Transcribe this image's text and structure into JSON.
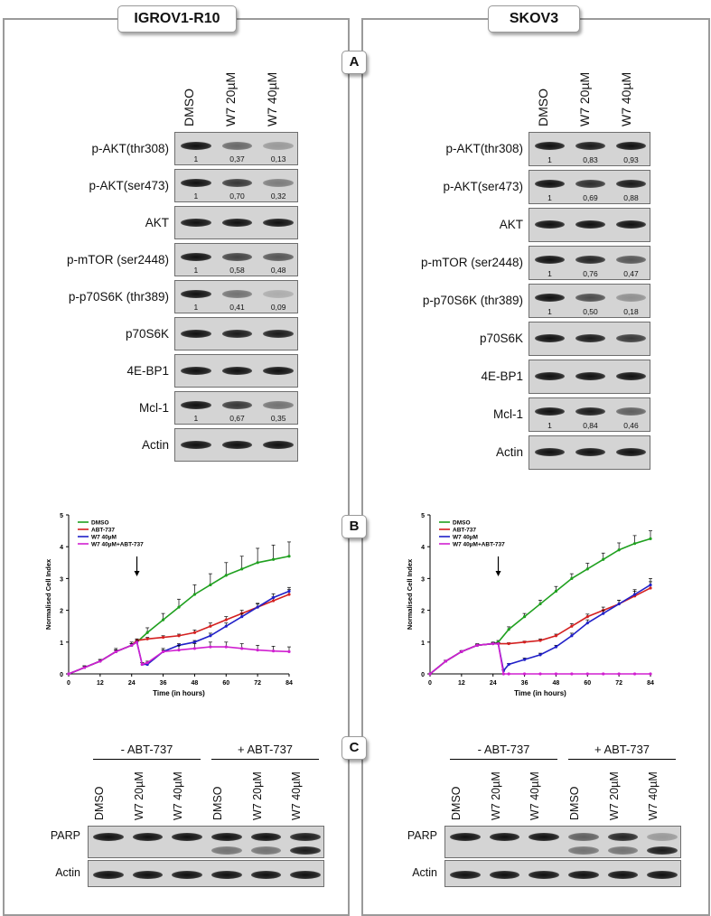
{
  "left": {
    "title": "IGROV1-R10",
    "lanes": [
      "DMSO",
      "W7 20µM",
      "W7 40µM"
    ],
    "blots": [
      {
        "label": "p-AKT(thr308)",
        "quant": [
          "1",
          "0,37",
          "0,13"
        ],
        "intensity": [
          1.0,
          0.55,
          0.3
        ]
      },
      {
        "label": "p-AKT(ser473)",
        "quant": [
          "1",
          "0,70",
          "0,32"
        ],
        "intensity": [
          1.0,
          0.8,
          0.45
        ]
      },
      {
        "label": "AKT",
        "quant": [],
        "intensity": [
          1.0,
          1.0,
          1.0
        ]
      },
      {
        "label": "p-mTOR (ser2448)",
        "quant": [
          "1",
          "0,58",
          "0,48"
        ],
        "intensity": [
          1.0,
          0.75,
          0.65
        ]
      },
      {
        "label": "p-p70S6K (thr389)",
        "quant": [
          "1",
          "0,41",
          "0,09"
        ],
        "intensity": [
          1.0,
          0.5,
          0.2
        ]
      },
      {
        "label": "p70S6K",
        "quant": [],
        "intensity": [
          1.0,
          0.95,
          0.95
        ]
      },
      {
        "label": "4E-BP1",
        "quant": [],
        "intensity": [
          1.0,
          1.0,
          1.0
        ]
      },
      {
        "label": "Mcl-1",
        "quant": [
          "1",
          "0,67",
          "0,35"
        ],
        "intensity": [
          1.0,
          0.8,
          0.5
        ]
      },
      {
        "label": "Actin",
        "quant": [],
        "intensity": [
          1.0,
          1.0,
          1.0
        ]
      }
    ]
  },
  "right": {
    "title": "SKOV3",
    "lanes": [
      "DMSO",
      "W7 20µM",
      "W7 40µM"
    ],
    "blots": [
      {
        "label": "p-AKT(thr308)",
        "quant": [
          "1",
          "0,83",
          "0,93"
        ],
        "intensity": [
          1.0,
          0.95,
          1.0
        ]
      },
      {
        "label": "p-AKT(ser473)",
        "quant": [
          "1",
          "0,69",
          "0,88"
        ],
        "intensity": [
          1.0,
          0.85,
          0.95
        ]
      },
      {
        "label": "AKT",
        "quant": [],
        "intensity": [
          1.0,
          1.0,
          1.0
        ]
      },
      {
        "label": "p-mTOR (ser2448)",
        "quant": [
          "1",
          "0,76",
          "0,47"
        ],
        "intensity": [
          1.0,
          0.9,
          0.65
        ]
      },
      {
        "label": "p-p70S6K (thr389)",
        "quant": [
          "1",
          "0,50",
          "0,18"
        ],
        "intensity": [
          1.0,
          0.7,
          0.35
        ]
      },
      {
        "label": "p70S6K",
        "quant": [],
        "intensity": [
          1.0,
          0.95,
          0.8
        ]
      },
      {
        "label": "4E-BP1",
        "quant": [],
        "intensity": [
          1.0,
          1.0,
          1.0
        ]
      },
      {
        "label": "Mcl-1",
        "quant": [
          "1",
          "0,84",
          "0,46"
        ],
        "intensity": [
          1.0,
          0.95,
          0.6
        ]
      },
      {
        "label": "Actin",
        "quant": [],
        "intensity": [
          1.0,
          1.0,
          1.0
        ]
      }
    ]
  },
  "sections": {
    "a": "A",
    "b": "B",
    "c": "C"
  },
  "chart_data": [
    {
      "type": "line",
      "panel": "IGROV1-R10",
      "xlabel": "Time (in hours)",
      "ylabel": "Normalised Cell Index",
      "xlim": [
        0,
        84
      ],
      "ylim": [
        0,
        5
      ],
      "xticks": [
        0,
        12,
        24,
        36,
        48,
        60,
        72,
        84
      ],
      "yticks": [
        0,
        1,
        2,
        3,
        4,
        5
      ],
      "annotation_arrow_x": 26,
      "legend": "top-left",
      "series": [
        {
          "name": "DMSO",
          "color": "#1fa01f",
          "x": [
            0,
            6,
            12,
            18,
            24,
            26,
            30,
            36,
            42,
            48,
            54,
            60,
            66,
            72,
            78,
            84
          ],
          "y": [
            0,
            0.2,
            0.4,
            0.7,
            0.9,
            1.0,
            1.3,
            1.7,
            2.1,
            2.5,
            2.8,
            3.1,
            3.3,
            3.5,
            3.6,
            3.7
          ],
          "err": [
            0,
            0.05,
            0.05,
            0.1,
            0.1,
            0.1,
            0.15,
            0.2,
            0.25,
            0.3,
            0.35,
            0.4,
            0.4,
            0.45,
            0.45,
            0.45
          ]
        },
        {
          "name": "ABT-737",
          "color": "#d42020",
          "x": [
            0,
            6,
            12,
            18,
            24,
            26,
            30,
            36,
            42,
            48,
            54,
            60,
            66,
            72,
            78,
            84
          ],
          "y": [
            0,
            0.2,
            0.4,
            0.7,
            0.9,
            1.05,
            1.1,
            1.15,
            1.2,
            1.3,
            1.5,
            1.7,
            1.9,
            2.1,
            2.3,
            2.5
          ],
          "err": [
            0,
            0.05,
            0.05,
            0.05,
            0.05,
            0.05,
            0.05,
            0.05,
            0.05,
            0.08,
            0.1,
            0.1,
            0.1,
            0.12,
            0.12,
            0.15
          ]
        },
        {
          "name": "W7 40µM",
          "color": "#2020c8",
          "x": [
            0,
            6,
            12,
            18,
            24,
            26,
            28,
            30,
            36,
            42,
            48,
            54,
            60,
            66,
            72,
            78,
            84
          ],
          "y": [
            0,
            0.2,
            0.4,
            0.7,
            0.9,
            1.0,
            0.3,
            0.3,
            0.7,
            0.9,
            1.0,
            1.2,
            1.5,
            1.8,
            2.1,
            2.4,
            2.6
          ],
          "err": [
            0,
            0.05,
            0.05,
            0.05,
            0.05,
            0.05,
            0.05,
            0.05,
            0.05,
            0.05,
            0.05,
            0.08,
            0.1,
            0.1,
            0.1,
            0.12,
            0.12
          ]
        },
        {
          "name": "W7 40µM+ABT-737",
          "color": "#d020d0",
          "x": [
            0,
            6,
            12,
            18,
            24,
            26,
            28,
            30,
            36,
            42,
            48,
            54,
            60,
            66,
            72,
            78,
            84
          ],
          "y": [
            0,
            0.2,
            0.4,
            0.7,
            0.9,
            1.0,
            0.3,
            0.35,
            0.7,
            0.75,
            0.8,
            0.85,
            0.85,
            0.8,
            0.75,
            0.72,
            0.7
          ],
          "err": [
            0,
            0.05,
            0.05,
            0.05,
            0.05,
            0.05,
            0.05,
            0.05,
            0.1,
            0.15,
            0.15,
            0.15,
            0.15,
            0.15,
            0.15,
            0.15,
            0.15
          ]
        }
      ]
    },
    {
      "type": "line",
      "panel": "SKOV3",
      "xlabel": "Time (in hours)",
      "ylabel": "Normalised Cell Index",
      "xlim": [
        0,
        84
      ],
      "ylim": [
        0,
        5
      ],
      "xticks": [
        0,
        12,
        24,
        36,
        48,
        60,
        72,
        84
      ],
      "yticks": [
        0,
        1,
        2,
        3,
        4,
        5
      ],
      "annotation_arrow_x": 26,
      "legend": "top-left",
      "series": [
        {
          "name": "DMSO",
          "color": "#1fa01f",
          "x": [
            0,
            6,
            12,
            18,
            24,
            26,
            30,
            36,
            42,
            48,
            54,
            60,
            66,
            72,
            78,
            84
          ],
          "y": [
            0,
            0.4,
            0.7,
            0.9,
            0.95,
            1.0,
            1.4,
            1.8,
            2.2,
            2.6,
            3.0,
            3.3,
            3.6,
            3.9,
            4.1,
            4.25
          ],
          "err": [
            0,
            0.03,
            0.03,
            0.05,
            0.05,
            0.05,
            0.08,
            0.1,
            0.12,
            0.15,
            0.15,
            0.18,
            0.2,
            0.22,
            0.25,
            0.25
          ]
        },
        {
          "name": "ABT-737",
          "color": "#d42020",
          "x": [
            0,
            6,
            12,
            18,
            24,
            26,
            30,
            36,
            42,
            48,
            54,
            60,
            66,
            72,
            78,
            84
          ],
          "y": [
            0,
            0.4,
            0.7,
            0.9,
            0.95,
            0.95,
            0.95,
            1.0,
            1.05,
            1.2,
            1.5,
            1.8,
            2.0,
            2.2,
            2.45,
            2.7
          ],
          "err": [
            0,
            0.03,
            0.03,
            0.03,
            0.03,
            0.03,
            0.03,
            0.03,
            0.05,
            0.05,
            0.08,
            0.08,
            0.1,
            0.12,
            0.15,
            0.2
          ]
        },
        {
          "name": "W7 40µM",
          "color": "#2020c8",
          "x": [
            0,
            6,
            12,
            18,
            24,
            26,
            28,
            30,
            36,
            42,
            48,
            54,
            60,
            66,
            72,
            78,
            84
          ],
          "y": [
            0,
            0.4,
            0.7,
            0.9,
            0.95,
            0.95,
            0.1,
            0.3,
            0.45,
            0.6,
            0.85,
            1.2,
            1.6,
            1.9,
            2.2,
            2.5,
            2.8
          ],
          "err": [
            0,
            0.03,
            0.03,
            0.03,
            0.03,
            0.03,
            0.03,
            0.03,
            0.05,
            0.05,
            0.05,
            0.08,
            0.1,
            0.1,
            0.12,
            0.15,
            0.2
          ]
        },
        {
          "name": "W7 40µM+ABT-737",
          "color": "#d020d0",
          "x": [
            0,
            6,
            12,
            18,
            24,
            26,
            28,
            30,
            36,
            42,
            48,
            54,
            60,
            66,
            72,
            78,
            84
          ],
          "y": [
            0,
            0.4,
            0.7,
            0.9,
            0.95,
            0.95,
            0.0,
            0.0,
            0.0,
            0.0,
            0.0,
            0.0,
            0.0,
            0.0,
            0.0,
            0.0,
            0.0
          ],
          "err": [
            0,
            0.03,
            0.03,
            0.03,
            0.03,
            0.03,
            0,
            0,
            0,
            0,
            0,
            0,
            0,
            0,
            0,
            0,
            0
          ]
        }
      ]
    }
  ],
  "parp": {
    "groups": [
      "- ABT-737",
      "+ ABT-737"
    ],
    "lanes": [
      "DMSO",
      "W7 20µM",
      "W7 40µM",
      "DMSO",
      "W7 20µM",
      "W7 40µM"
    ],
    "rows": [
      "PARP",
      "Actin"
    ]
  }
}
